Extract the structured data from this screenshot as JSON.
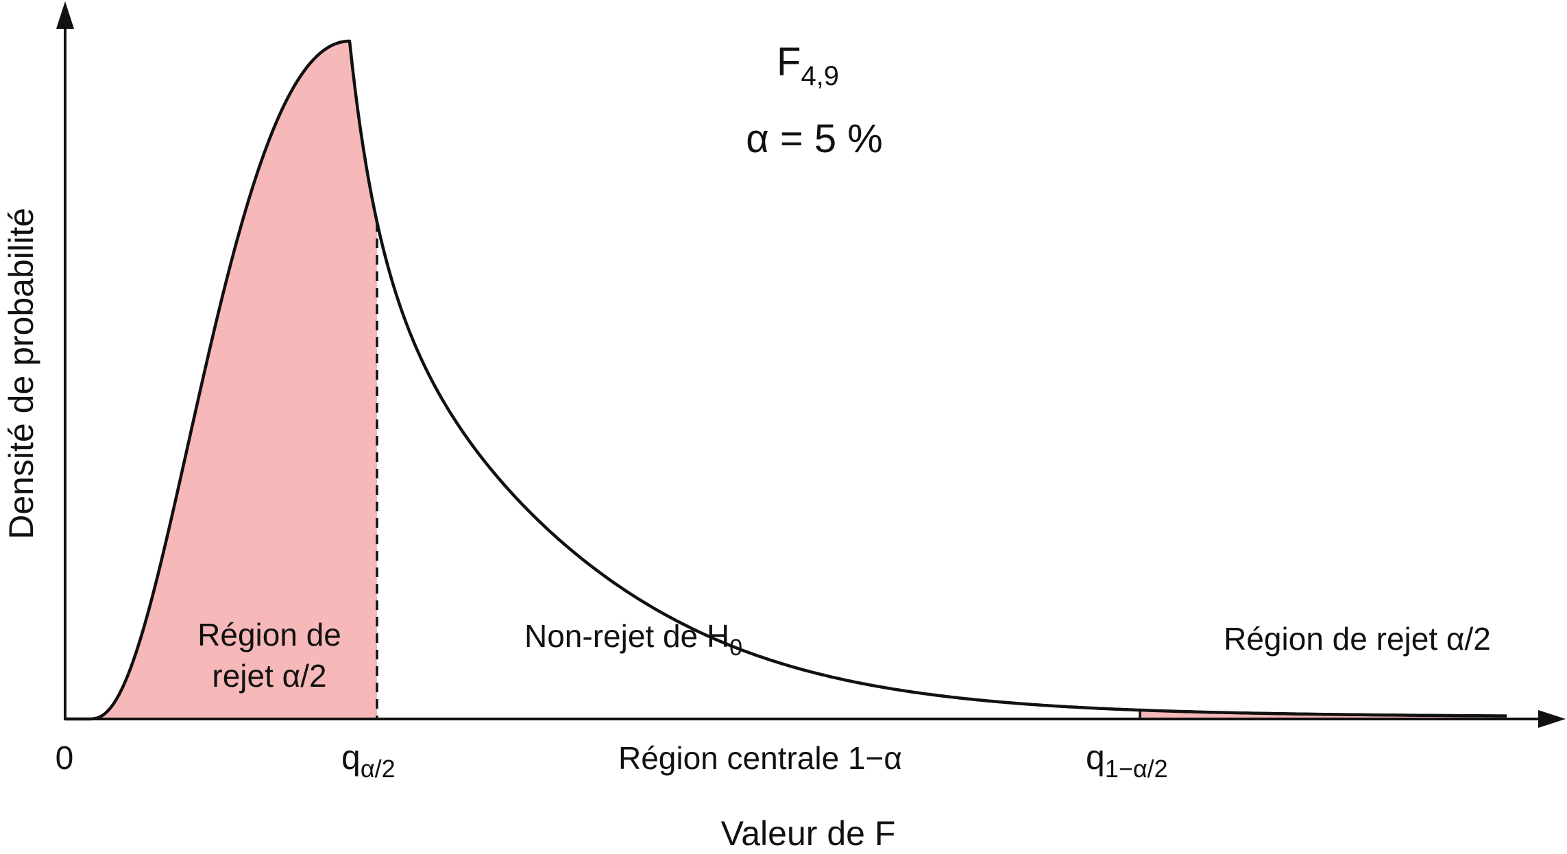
{
  "title": {
    "distribution_base": "F",
    "distribution_sub": "4,9",
    "alpha_text": "α = 5 %"
  },
  "axes": {
    "ylabel": "Densité de probabilité",
    "xlabel": "Valeur de F",
    "origin_label": "0"
  },
  "quantiles": {
    "lower_base": "q",
    "lower_sub": "α/2",
    "upper_base": "q",
    "upper_sub": "1−α/2"
  },
  "regions": {
    "left_line1": "Région de",
    "left_line2": "rejet α/2",
    "middle_base": "Non-rejet de H",
    "middle_sub": "0",
    "right": "Région de rejet α/2",
    "central": "Région centrale 1−α"
  },
  "colors": {
    "rejection_fill": "#f6b8b8",
    "curve": "#111111",
    "axis": "#111111"
  },
  "chart_data": {
    "type": "area",
    "distribution": "F",
    "df1": 4,
    "df2": 9,
    "alpha": 0.05,
    "shaded_regions": [
      "lower tail",
      "upper tail"
    ]
  }
}
